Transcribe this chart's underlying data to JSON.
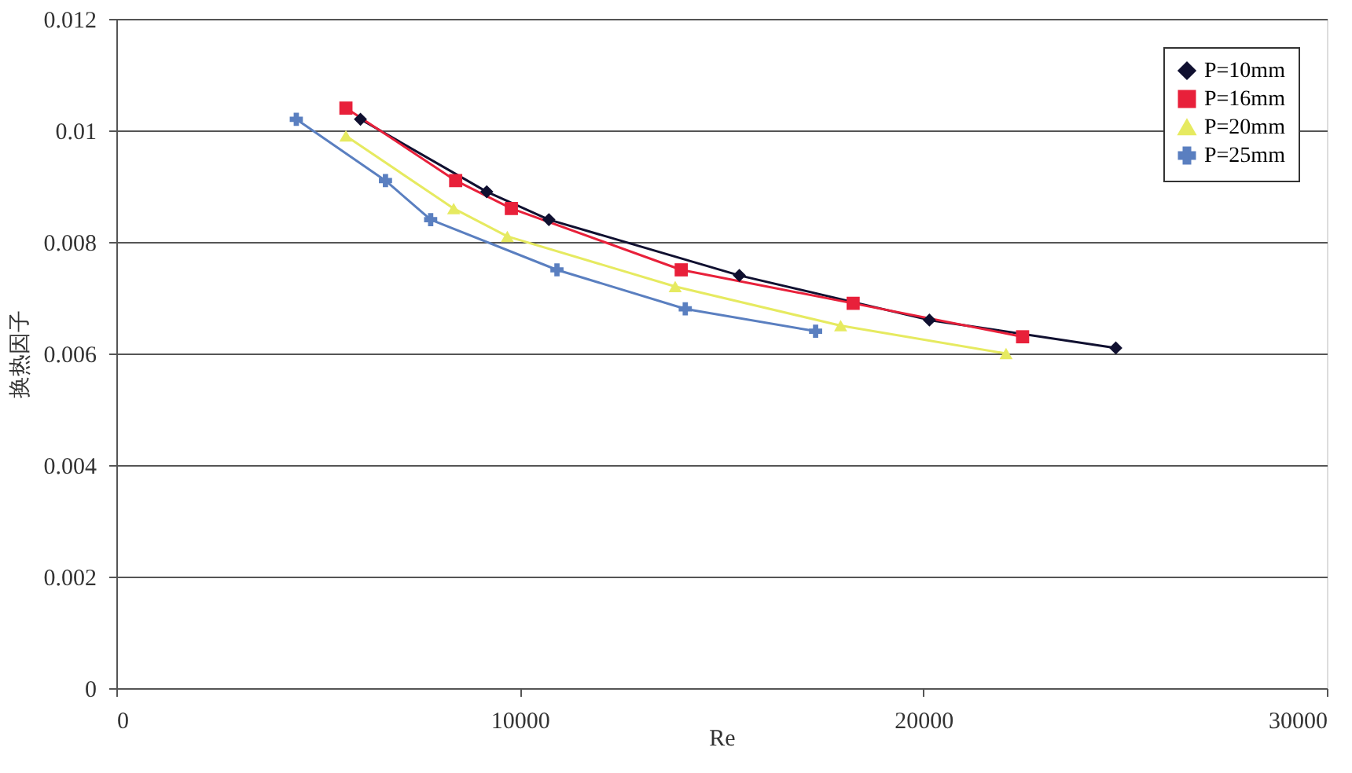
{
  "chart_data": {
    "type": "line",
    "xlabel": "Re",
    "ylabel": "换热因子",
    "xlim": [
      0,
      30000
    ],
    "xticks": [
      0,
      10000,
      20000,
      30000
    ],
    "ylim": [
      0,
      0.012
    ],
    "yticks": [
      0,
      0.002,
      0.004,
      0.006,
      0.008,
      0.01,
      0.012
    ],
    "grid": "y",
    "legend": "top right",
    "line_style": "solid",
    "series": [
      {
        "name": "P=10mm",
        "color": "#101030",
        "marker": "diamond",
        "x": [
          6050,
          9180,
          10720,
          15440,
          20150,
          24770
        ],
        "values": [
          0.0102,
          0.0089,
          0.0084,
          0.0074,
          0.0066,
          0.0061
        ]
      },
      {
        "name": "P=16mm",
        "color": "#e8203a",
        "marker": "square",
        "x": [
          5690,
          8410,
          9790,
          14000,
          18260,
          22460
        ],
        "values": [
          0.0104,
          0.0091,
          0.0086,
          0.0075,
          0.0069,
          0.0063
        ]
      },
      {
        "name": "P=20mm",
        "color": "#e6ea60",
        "marker": "triangle",
        "x": [
          5690,
          8360,
          9690,
          13850,
          17950,
          22050
        ],
        "values": [
          0.0099,
          0.0086,
          0.0081,
          0.0072,
          0.0065,
          0.006
        ]
      },
      {
        "name": "P=25mm",
        "color": "#5a7fc0",
        "marker": "cross",
        "x": [
          4460,
          6670,
          7790,
          10920,
          14100,
          17330
        ],
        "values": [
          0.0102,
          0.0091,
          0.0084,
          0.0075,
          0.0068,
          0.0064
        ]
      }
    ]
  }
}
